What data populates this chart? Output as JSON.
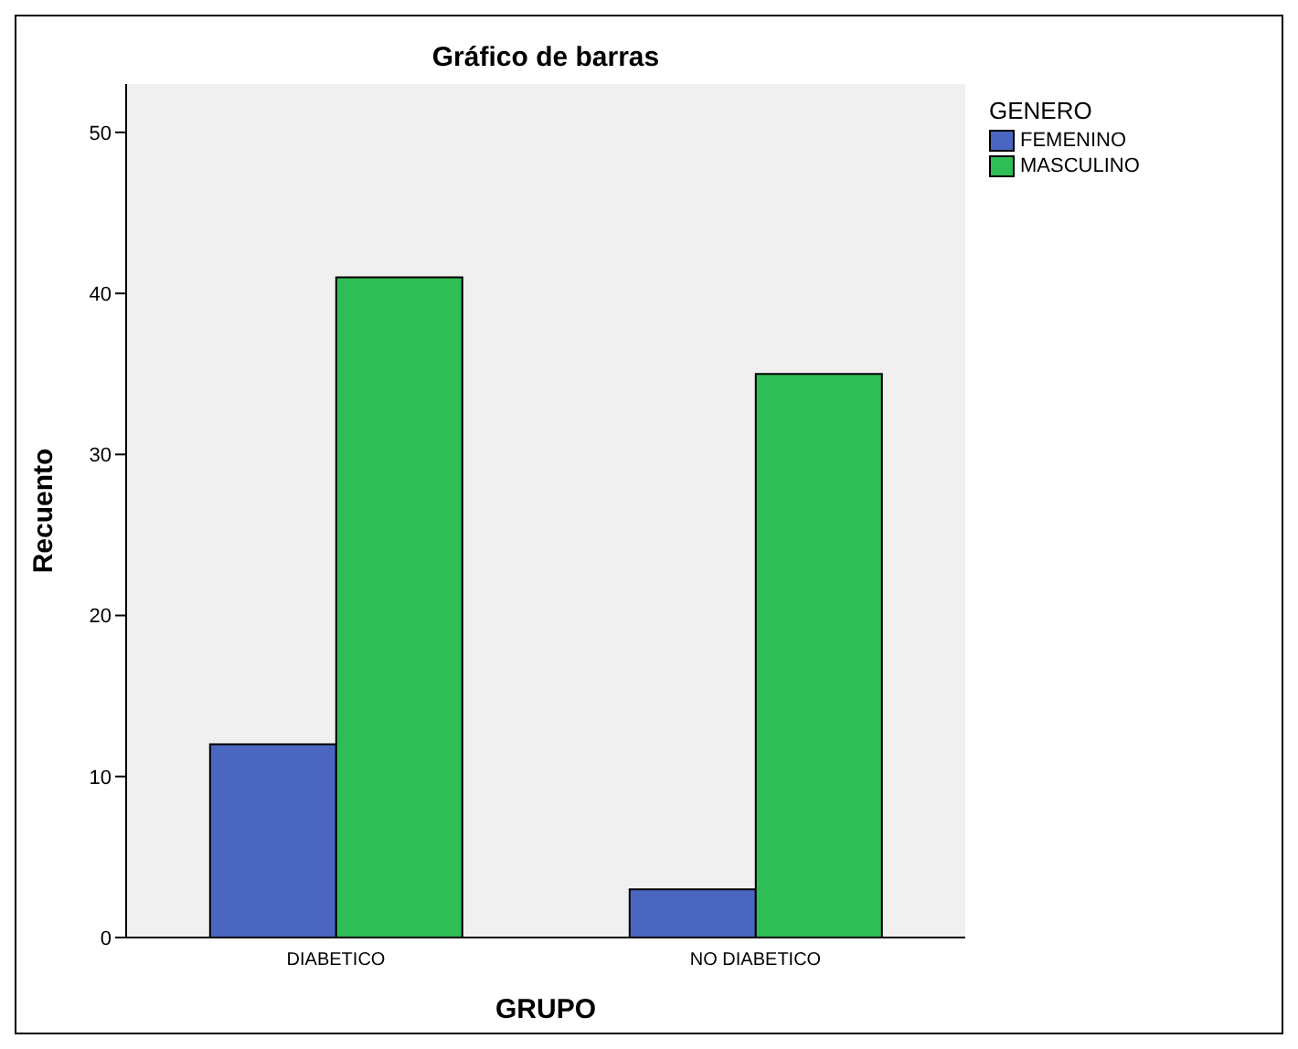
{
  "chart_data": {
    "type": "bar",
    "title": "Gráfico de barras",
    "xlabel": "GRUPO",
    "ylabel": "Recuento",
    "legend_title": "GENERO",
    "categories": [
      "DIABETICO",
      "NO DIABETICO"
    ],
    "series": [
      {
        "name": "FEMENINO",
        "color": "#4a66c0",
        "values": [
          12,
          3
        ]
      },
      {
        "name": "MASCULINO",
        "color": "#2fbd55",
        "values": [
          41,
          35
        ]
      }
    ],
    "ylim": [
      0,
      53
    ],
    "yticks": [
      0,
      10,
      20,
      30,
      40,
      50
    ],
    "grid": false,
    "legend": "top right"
  }
}
